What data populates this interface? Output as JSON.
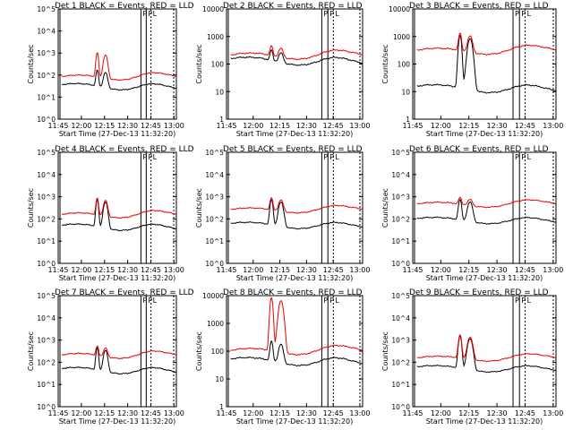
{
  "colors": {
    "events": "#000000",
    "lld": "#ee0000",
    "axis": "#000000"
  },
  "common": {
    "xlabel": "Start Time (27-Dec-13 11:32:20)",
    "ylabel": "Counts/sec",
    "xtick_labels": [
      "11:45",
      "12:00",
      "12:15",
      "12:30",
      "12:45",
      "13:00"
    ],
    "markers": [
      "P",
      "P",
      "L"
    ]
  },
  "chart_data": [
    {
      "type": "line",
      "title": "Det 1   BLACK = Events, RED = LLD",
      "y_scale": "log",
      "ylim": [
        1,
        100000
      ],
      "ytick_labels": [
        "10^0",
        "10^1",
        "10^2",
        "10^3",
        "10^4",
        "10^5"
      ],
      "series": [
        {
          "name": "Events",
          "color": "#000000",
          "base": 35,
          "peak": 220
        },
        {
          "name": "LLD",
          "color": "#ee0000",
          "base": 80,
          "peak": 1200
        }
      ]
    },
    {
      "type": "line",
      "title": "Det 2   BLACK = Events, RED = LLD",
      "y_scale": "log",
      "ylim": [
        1,
        10000
      ],
      "ytick_labels": [
        "1",
        "10",
        "100",
        "1000",
        "10000"
      ],
      "series": [
        {
          "name": "Events",
          "color": "#000000",
          "base": 150,
          "peak": 400
        },
        {
          "name": "LLD",
          "color": "#ee0000",
          "base": 200,
          "peak": 500
        }
      ]
    },
    {
      "type": "line",
      "title": "Det 3   BLACK = Events, RED = LLD",
      "y_scale": "log",
      "ylim": [
        1,
        10000
      ],
      "ytick_labels": [
        "1",
        "10",
        "100",
        "1000",
        "10000"
      ],
      "series": [
        {
          "name": "Events",
          "color": "#000000",
          "base": 15,
          "peak": 1500
        },
        {
          "name": "LLD",
          "color": "#ee0000",
          "base": 300,
          "peak": 1500
        }
      ]
    },
    {
      "type": "line",
      "title": "Det 4   BLACK = Events, RED = LLD",
      "y_scale": "log",
      "ylim": [
        1,
        100000
      ],
      "ytick_labels": [
        "10^0",
        "10^1",
        "10^2",
        "10^3",
        "10^4",
        "10^5"
      ],
      "series": [
        {
          "name": "Events",
          "color": "#000000",
          "base": 50,
          "peak": 1000
        },
        {
          "name": "LLD",
          "color": "#ee0000",
          "base": 150,
          "peak": 1000
        }
      ]
    },
    {
      "type": "line",
      "title": "Det 5   BLACK = Events, RED = LLD",
      "y_scale": "log",
      "ylim": [
        1,
        100000
      ],
      "ytick_labels": [
        "10^0",
        "10^1",
        "10^2",
        "10^3",
        "10^4",
        "10^5"
      ],
      "series": [
        {
          "name": "Events",
          "color": "#000000",
          "base": 60,
          "peak": 1000
        },
        {
          "name": "LLD",
          "color": "#ee0000",
          "base": 250,
          "peak": 1000
        }
      ]
    },
    {
      "type": "line",
      "title": "Det 6   BLACK = Events, RED = LLD",
      "y_scale": "log",
      "ylim": [
        1,
        100000
      ],
      "ytick_labels": [
        "10^0",
        "10^1",
        "10^2",
        "10^3",
        "10^4",
        "10^5"
      ],
      "series": [
        {
          "name": "Events",
          "color": "#000000",
          "base": 100,
          "peak": 1000
        },
        {
          "name": "LLD",
          "color": "#ee0000",
          "base": 450,
          "peak": 1000
        }
      ]
    },
    {
      "type": "line",
      "title": "Det 7   BLACK = Events, RED = LLD",
      "y_scale": "log",
      "ylim": [
        1,
        100000
      ],
      "ytick_labels": [
        "10^0",
        "10^1",
        "10^2",
        "10^3",
        "10^4",
        "10^5"
      ],
      "series": [
        {
          "name": "Events",
          "color": "#000000",
          "base": 50,
          "peak": 600
        },
        {
          "name": "LLD",
          "color": "#ee0000",
          "base": 200,
          "peak": 600
        }
      ]
    },
    {
      "type": "line",
      "title": "Det 8   BLACK = Events, RED = LLD",
      "y_scale": "log",
      "ylim": [
        1,
        10000
      ],
      "ytick_labels": [
        "1",
        "10",
        "100",
        "1000",
        "10000"
      ],
      "series": [
        {
          "name": "Events",
          "color": "#000000",
          "base": 50,
          "peak": 300
        },
        {
          "name": "LLD",
          "color": "#ee0000",
          "base": 100,
          "peak": 10000
        }
      ]
    },
    {
      "type": "line",
      "title": "Det 9   BLACK = Events, RED = LLD",
      "y_scale": "log",
      "ylim": [
        1,
        100000
      ],
      "ytick_labels": [
        "10^0",
        "10^1",
        "10^2",
        "10^3",
        "10^4",
        "10^5"
      ],
      "series": [
        {
          "name": "Events",
          "color": "#000000",
          "base": 60,
          "peak": 2000
        },
        {
          "name": "LLD",
          "color": "#ee0000",
          "base": 150,
          "peak": 2000
        }
      ]
    }
  ]
}
